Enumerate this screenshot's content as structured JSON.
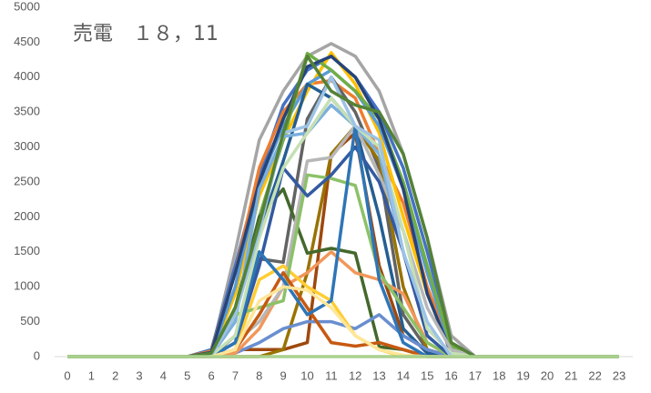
{
  "chart_data": {
    "type": "line",
    "title": "売電　１８，11",
    "categories": [
      "0",
      "1",
      "2",
      "3",
      "4",
      "5",
      "6",
      "7",
      "8",
      "9",
      "10",
      "11",
      "12",
      "13",
      "14",
      "15",
      "16",
      "17",
      "18",
      "19",
      "20",
      "21",
      "22",
      "23"
    ],
    "ylim": [
      0,
      5000
    ],
    "yticks": [
      0,
      500,
      1000,
      1500,
      2000,
      2500,
      3000,
      3500,
      4000,
      4500,
      5000
    ],
    "grid": false,
    "series": [
      {
        "color": "#a5a5a5",
        "values": [
          0,
          0,
          0,
          0,
          0,
          0,
          50,
          1500,
          3100,
          3800,
          4300,
          4480,
          4300,
          3800,
          2900,
          1700,
          300,
          0,
          0,
          0,
          0,
          0,
          0,
          0
        ]
      },
      {
        "color": "#4472c4",
        "values": [
          0,
          0,
          0,
          0,
          0,
          0,
          100,
          1300,
          2600,
          3600,
          4100,
          4300,
          4000,
          3500,
          2700,
          1500,
          200,
          0,
          0,
          0,
          0,
          0,
          0,
          0
        ]
      },
      {
        "color": "#ed7d31",
        "values": [
          0,
          0,
          0,
          0,
          0,
          0,
          80,
          1200,
          2700,
          3500,
          3900,
          3950,
          3700,
          2900,
          2200,
          1000,
          100,
          0,
          0,
          0,
          0,
          0,
          0,
          0
        ]
      },
      {
        "color": "#ffc000",
        "values": [
          0,
          0,
          0,
          0,
          0,
          0,
          30,
          900,
          2300,
          3100,
          3800,
          4350,
          3900,
          3200,
          2000,
          900,
          50,
          0,
          0,
          0,
          0,
          0,
          0,
          0
        ]
      },
      {
        "color": "#5b9bd5",
        "values": [
          0,
          0,
          0,
          0,
          0,
          0,
          40,
          1000,
          2500,
          3300,
          3900,
          4100,
          3800,
          3300,
          2400,
          1200,
          100,
          0,
          0,
          0,
          0,
          0,
          0,
          0
        ]
      },
      {
        "color": "#70ad47",
        "values": [
          0,
          0,
          0,
          0,
          0,
          0,
          20,
          700,
          2000,
          3100,
          4340,
          4100,
          3800,
          3400,
          2500,
          1300,
          150,
          0,
          0,
          0,
          0,
          0,
          0,
          0
        ]
      },
      {
        "color": "#264478",
        "values": [
          0,
          0,
          0,
          0,
          0,
          0,
          60,
          1200,
          2500,
          3400,
          4150,
          4300,
          4000,
          3400,
          2400,
          900,
          50,
          0,
          0,
          0,
          0,
          0,
          0,
          0
        ]
      },
      {
        "color": "#9e480e",
        "values": [
          0,
          0,
          0,
          0,
          0,
          0,
          0,
          100,
          100,
          100,
          200,
          2900,
          3200,
          1300,
          300,
          100,
          0,
          0,
          0,
          0,
          0,
          0,
          0,
          0
        ]
      },
      {
        "color": "#636363",
        "values": [
          0,
          0,
          0,
          0,
          0,
          0,
          0,
          300,
          1400,
          1350,
          3400,
          4000,
          3500,
          2700,
          600,
          100,
          0,
          0,
          0,
          0,
          0,
          0,
          0,
          0
        ]
      },
      {
        "color": "#997300",
        "values": [
          0,
          0,
          0,
          0,
          0,
          0,
          0,
          0,
          0,
          100,
          1200,
          2900,
          3300,
          2800,
          1000,
          100,
          0,
          0,
          0,
          0,
          0,
          0,
          0,
          0
        ]
      },
      {
        "color": "#255e91",
        "values": [
          0,
          0,
          0,
          0,
          0,
          0,
          20,
          600,
          1800,
          2800,
          3900,
          3700,
          3300,
          2000,
          400,
          50,
          0,
          0,
          0,
          0,
          0,
          0,
          0,
          0
        ]
      },
      {
        "color": "#43682b",
        "values": [
          0,
          0,
          0,
          0,
          0,
          0,
          20,
          700,
          2000,
          2400,
          1480,
          1550,
          1480,
          140,
          100,
          0,
          0,
          0,
          0,
          0,
          0,
          0,
          0,
          0
        ]
      },
      {
        "color": "#698ed0",
        "values": [
          0,
          0,
          0,
          0,
          0,
          0,
          0,
          50,
          200,
          400,
          500,
          500,
          400,
          600,
          300,
          100,
          0,
          0,
          0,
          0,
          0,
          0,
          0,
          0
        ]
      },
      {
        "color": "#f1975a",
        "values": [
          0,
          0,
          0,
          0,
          0,
          0,
          0,
          50,
          400,
          1000,
          1200,
          1500,
          1200,
          1100,
          900,
          200,
          0,
          0,
          0,
          0,
          0,
          0,
          0,
          0
        ]
      },
      {
        "color": "#b7b7b7",
        "values": [
          0,
          0,
          0,
          0,
          0,
          0,
          0,
          200,
          500,
          1000,
          2800,
          2850,
          3300,
          2600,
          1800,
          700,
          100,
          0,
          0,
          0,
          0,
          0,
          0,
          0
        ]
      },
      {
        "color": "#ffcd33",
        "values": [
          0,
          0,
          0,
          0,
          0,
          0,
          0,
          100,
          1100,
          1300,
          1000,
          800,
          300,
          100,
          0,
          0,
          0,
          0,
          0,
          0,
          0,
          0,
          0,
          0
        ]
      },
      {
        "color": "#7cafdd",
        "values": [
          0,
          0,
          0,
          0,
          0,
          0,
          20,
          500,
          2400,
          3150,
          3200,
          3600,
          3300,
          2900,
          1500,
          300,
          0,
          0,
          0,
          0,
          0,
          0,
          0,
          0
        ]
      },
      {
        "color": "#8cc168",
        "values": [
          0,
          0,
          0,
          0,
          0,
          0,
          20,
          600,
          700,
          800,
          2600,
          2550,
          2450,
          1200,
          700,
          200,
          0,
          0,
          0,
          0,
          0,
          0,
          0,
          0
        ]
      },
      {
        "color": "#335aa1",
        "values": [
          0,
          0,
          0,
          0,
          0,
          0,
          0,
          200,
          1300,
          2700,
          2300,
          2600,
          3000,
          2500,
          1500,
          300,
          0,
          0,
          0,
          0,
          0,
          0,
          0,
          0
        ]
      },
      {
        "color": "#c65911",
        "values": [
          0,
          0,
          0,
          0,
          0,
          0,
          0,
          100,
          600,
          1200,
          700,
          200,
          150,
          200,
          100,
          0,
          0,
          0,
          0,
          0,
          0,
          0,
          0,
          0
        ]
      },
      {
        "color": "#2e75b6",
        "values": [
          0,
          0,
          0,
          0,
          0,
          0,
          0,
          200,
          1500,
          1100,
          600,
          800,
          3300,
          1100,
          200,
          0,
          0,
          0,
          0,
          0,
          0,
          0,
          0,
          0
        ]
      },
      {
        "color": "#c5e0b4",
        "values": [
          0,
          0,
          0,
          0,
          0,
          0,
          20,
          300,
          1700,
          2700,
          3200,
          3700,
          3300,
          3000,
          1800,
          400,
          50,
          0,
          0,
          0,
          0,
          0,
          0,
          0
        ]
      },
      {
        "color": "#9dc3e6",
        "values": [
          0,
          0,
          0,
          0,
          0,
          0,
          20,
          600,
          1800,
          3200,
          3300,
          4000,
          3300,
          3100,
          1500,
          500,
          0,
          0,
          0,
          0,
          0,
          0,
          0,
          0
        ]
      },
      {
        "color": "#ffe699",
        "values": [
          0,
          0,
          0,
          0,
          0,
          0,
          0,
          100,
          800,
          1000,
          950,
          700,
          300,
          100,
          20,
          0,
          0,
          0,
          0,
          0,
          0,
          0,
          0,
          0
        ]
      },
      {
        "color": "#548235",
        "values": [
          0,
          0,
          0,
          0,
          0,
          0,
          50,
          700,
          1900,
          3200,
          4300,
          3800,
          3600,
          3500,
          2900,
          1700,
          200,
          0,
          0,
          0,
          0,
          0,
          0,
          0
        ]
      },
      {
        "color": "#a9d18e",
        "values": [
          0,
          0,
          0,
          0,
          0,
          0,
          0,
          0,
          0,
          0,
          0,
          0,
          0,
          0,
          0,
          0,
          0,
          0,
          0,
          0,
          0,
          0,
          0,
          0
        ]
      }
    ]
  }
}
